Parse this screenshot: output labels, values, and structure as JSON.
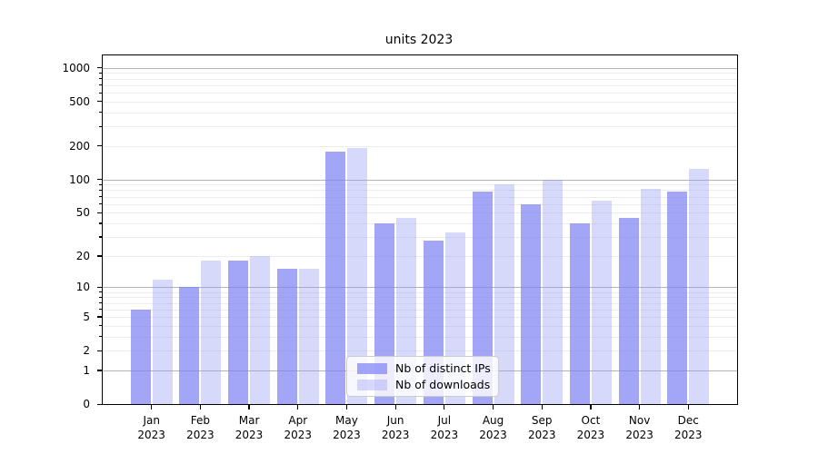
{
  "title": "units 2023",
  "legend": {
    "items": [
      {
        "label": "Nb of distinct IPs",
        "color": "#a7a9f7"
      },
      {
        "label": "Nb of downloads",
        "color": "#dadcfa"
      }
    ]
  },
  "chart_data": {
    "type": "bar",
    "title": "units 2023",
    "categories": [
      "Jan 2023",
      "Feb 2023",
      "Mar 2023",
      "Apr 2023",
      "May 2023",
      "Jun 2023",
      "Jul 2023",
      "Aug 2023",
      "Sep 2023",
      "Oct 2023",
      "Nov 2023",
      "Dec 2023"
    ],
    "x_tick_months": [
      "Jan",
      "Feb",
      "Mar",
      "Apr",
      "May",
      "Jun",
      "Jul",
      "Aug",
      "Sep",
      "Oct",
      "Nov",
      "Dec"
    ],
    "x_tick_year": "2023",
    "series": [
      {
        "name": "Nb of distinct IPs",
        "color": "#a7a9f7",
        "values": [
          6,
          10,
          18,
          15,
          178,
          40,
          28,
          78,
          60,
          40,
          45,
          78
        ]
      },
      {
        "name": "Nb of downloads",
        "color": "#dadcfa",
        "values": [
          12,
          18,
          20,
          15,
          190,
          45,
          33,
          90,
          100,
          64,
          83,
          125
        ]
      }
    ],
    "y_axis": {
      "scale": "symlog",
      "ticks": [
        0,
        1,
        2,
        5,
        10,
        20,
        50,
        100,
        200,
        500,
        1000
      ],
      "minor_ticks": [
        2,
        3,
        4,
        5,
        6,
        7,
        8,
        9,
        20,
        30,
        40,
        50,
        60,
        70,
        80,
        90,
        200,
        300,
        400,
        500,
        600,
        700,
        800,
        900
      ],
      "range_max": 1290
    },
    "grid": true,
    "legend_position": "lower-center",
    "colors": {
      "bar_ips": "#a7a9f7",
      "bar_downloads": "#dadcfa",
      "grid_major": "#b3b3b3",
      "grid_minor": "#ececec",
      "axis": "#000000"
    }
  }
}
